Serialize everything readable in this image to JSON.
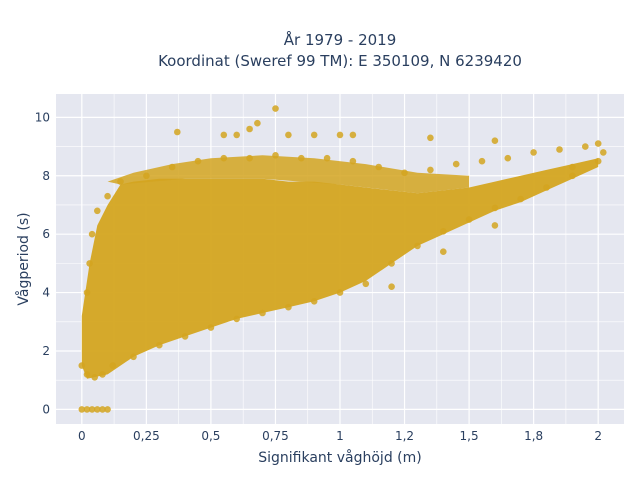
{
  "chart_data": {
    "type": "scatter",
    "title_lines": [
      "År 1979 - 2019",
      "Koordinat (Sweref 99 TM): E 350109, N 6239420"
    ],
    "xlabel": "Signifikant våghöjd (m)",
    "ylabel": "Vågperiod (s)",
    "xlim": [
      -0.1,
      2.1
    ],
    "ylim": [
      -0.5,
      10.8
    ],
    "x_ticks": [
      0,
      0.25,
      0.5,
      0.75,
      1,
      1.25,
      1.5,
      1.75,
      2
    ],
    "x_tick_labels": [
      "0",
      "0,25",
      "0,5",
      "0,75",
      "1",
      "1,2",
      "1,5",
      "1,8",
      "2"
    ],
    "y_ticks": [
      0,
      2,
      4,
      6,
      8,
      10
    ],
    "y_tick_labels": [
      "0",
      "2",
      "4",
      "6",
      "8",
      "10"
    ],
    "grid": true,
    "marker_color": "#d4a520",
    "plot_background": "#e5e7f0",
    "series": [
      {
        "points": [
          [
            0.0,
            0.0
          ],
          [
            0.02,
            0.0
          ],
          [
            0.04,
            0.0
          ],
          [
            0.06,
            0.0
          ],
          [
            0.08,
            0.0
          ],
          [
            0.1,
            0.0
          ],
          [
            0.0,
            1.5
          ],
          [
            0.02,
            1.2
          ],
          [
            0.05,
            1.1
          ],
          [
            0.08,
            1.2
          ],
          [
            0.12,
            1.5
          ],
          [
            0.2,
            1.8
          ],
          [
            0.3,
            2.2
          ],
          [
            0.4,
            2.5
          ],
          [
            0.5,
            2.8
          ],
          [
            0.6,
            3.1
          ],
          [
            0.7,
            3.3
          ],
          [
            0.8,
            3.5
          ],
          [
            0.9,
            3.7
          ],
          [
            1.0,
            4.0
          ],
          [
            1.1,
            4.3
          ],
          [
            1.2,
            5.0
          ],
          [
            1.3,
            5.6
          ],
          [
            1.4,
            6.1
          ],
          [
            1.5,
            6.5
          ],
          [
            1.6,
            6.9
          ],
          [
            1.7,
            7.2
          ],
          [
            1.8,
            7.6
          ],
          [
            1.9,
            8.0
          ],
          [
            2.0,
            8.5
          ],
          [
            0.02,
            4.0
          ],
          [
            0.03,
            5.0
          ],
          [
            0.04,
            6.0
          ],
          [
            0.06,
            6.8
          ],
          [
            0.1,
            7.3
          ],
          [
            0.15,
            7.8
          ],
          [
            0.25,
            8.0
          ],
          [
            0.35,
            8.3
          ],
          [
            0.45,
            8.5
          ],
          [
            0.55,
            8.6
          ],
          [
            0.65,
            8.6
          ],
          [
            0.75,
            8.7
          ],
          [
            0.85,
            8.6
          ],
          [
            0.95,
            8.6
          ],
          [
            1.05,
            8.5
          ],
          [
            1.15,
            8.3
          ],
          [
            1.25,
            8.1
          ],
          [
            1.35,
            8.2
          ],
          [
            1.45,
            8.4
          ],
          [
            1.55,
            8.5
          ],
          [
            1.65,
            8.6
          ],
          [
            1.75,
            8.8
          ],
          [
            1.85,
            8.9
          ],
          [
            1.95,
            9.0
          ],
          [
            0.37,
            9.5
          ],
          [
            0.55,
            9.4
          ],
          [
            0.6,
            9.4
          ],
          [
            0.65,
            9.6
          ],
          [
            0.68,
            9.8
          ],
          [
            0.75,
            10.3
          ],
          [
            0.8,
            9.4
          ],
          [
            0.9,
            9.4
          ],
          [
            1.0,
            9.4
          ],
          [
            1.05,
            9.4
          ],
          [
            1.35,
            9.3
          ],
          [
            1.6,
            9.2
          ],
          [
            1.2,
            4.2
          ],
          [
            1.4,
            5.4
          ],
          [
            1.6,
            6.3
          ],
          [
            1.9,
            8.3
          ],
          [
            2.02,
            8.8
          ],
          [
            2.0,
            9.1
          ]
        ]
      }
    ]
  }
}
